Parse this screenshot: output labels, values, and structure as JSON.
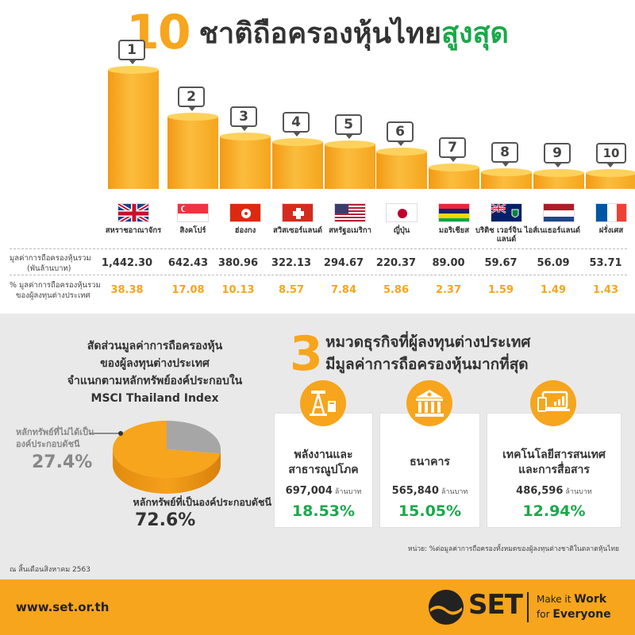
{
  "title": {
    "number": "10",
    "text": "ชาติถือครองหุ้นไทย",
    "highlight": "สูงสุด"
  },
  "chart_data": {
    "type": "bar",
    "title": "10 ชาติถือครองหุ้นไทยสูงสุด",
    "categories": [
      "สหราชอาณาจักร",
      "สิงคโปร์",
      "ฮ่องกง",
      "สวิสเซอร์แลนด์",
      "สหรัฐอเมริกา",
      "ญี่ปุ่น",
      "มอริเชียส",
      "บริติช เวอร์จิน ไอส์แลนด์",
      "เนเธอร์แลนด์",
      "ฝรั่งเศส"
    ],
    "ranks": [
      "1",
      "2",
      "3",
      "4",
      "5",
      "6",
      "7",
      "8",
      "9",
      "10"
    ],
    "values": [
      1442.3,
      642.43,
      380.96,
      322.13,
      294.67,
      220.37,
      89.0,
      59.67,
      56.09,
      53.71
    ],
    "series": [
      {
        "name": "มูลค่าการถือครองหุ้นรวม (พันล้านบาท)",
        "values": [
          1442.3,
          642.43,
          380.96,
          322.13,
          294.67,
          220.37,
          89.0,
          59.67,
          56.09,
          53.71
        ]
      },
      {
        "name": "% มูลค่าการถือครองหุ้นรวมของผู้ลงทุนต่างประเทศ",
        "values": [
          38.38,
          17.08,
          10.13,
          8.57,
          7.84,
          5.86,
          2.37,
          1.59,
          1.49,
          1.43
        ]
      }
    ]
  },
  "flags": [
    "flag-uk-icon",
    "flag-singapore-icon",
    "flag-hongkong-icon",
    "flag-switzerland-icon",
    "flag-usa-icon",
    "flag-japan-icon",
    "flag-mauritius-icon",
    "flag-bvi-icon",
    "flag-netherlands-icon",
    "flag-france-icon"
  ],
  "rows": {
    "value": {
      "label_line1": "มูลค่าการถือครองหุ้นรวม",
      "label_line2": "(พันล้านบาท)",
      "cells": [
        "1,442.30",
        "642.43",
        "380.96",
        "322.13",
        "294.67",
        "220.37",
        "89.00",
        "59.67",
        "56.09",
        "53.71"
      ]
    },
    "pct": {
      "label_line1": "% มูลค่าการถือครองหุ้นรวม",
      "label_line2": "ของผู้ลงทุนต่างประเทศ",
      "cells": [
        "38.38",
        "17.08",
        "10.13",
        "8.57",
        "7.84",
        "5.86",
        "2.37",
        "1.59",
        "1.49",
        "1.43"
      ]
    }
  },
  "pie": {
    "title_lines": [
      "สัดส่วนมูลค่าการถือครองหุ้น",
      "ของผู้ลงทุนต่างประเทศ",
      "จำแนกตามหลักทรัพย์องค์ประกอบใน",
      "MSCI Thailand Index"
    ],
    "slices": [
      {
        "label_line1": "หลักทรัพย์ที่ไม่ได้เป็น",
        "label_line2": "องค์ประกอบดัชนี",
        "pct_text": "27.4%",
        "value": 27.4,
        "color": "#a6a6a6"
      },
      {
        "label": "หลักทรัพย์ที่เป็นองค์ประกอบดัชนี",
        "pct_text": "72.6%",
        "value": 72.6,
        "color": "#f7a51c"
      }
    ]
  },
  "sectors": {
    "number": "3",
    "title_line1": "หมวดธุรกิจที่ผู้ลงทุนต่างประเทศ",
    "title_line2": "มีมูลค่าการถือครองหุ้นมากที่สุด",
    "unit_note": "หน่วย: %ต่อมูลค่าการถือครองทั้งหมดของผู้ลงทุนต่างชาติในตลาดหุ้นไทย",
    "cards": [
      {
        "icon": "oil-pump-icon",
        "name_line1": "พลังงานและ",
        "name_line2": "สาธารณูปโภค",
        "amount": "697,004",
        "unit": "ล้านบาท",
        "pct": "18.53%"
      },
      {
        "icon": "bank-icon",
        "name_line1": "ธนาคาร",
        "name_line2": "",
        "amount": "565,840",
        "unit": "ล้านบาท",
        "pct": "15.05%"
      },
      {
        "icon": "devices-icon",
        "name_line1": "เทคโนโลยีสารสนเทศ",
        "name_line2": "และการสื่อสาร",
        "amount": "486,596",
        "unit": "ล้านบาท",
        "pct": "12.94%"
      }
    ]
  },
  "date_note": "ณ สิ้นเดือนสิงหาคม 2563",
  "footer": {
    "url": "www.set.or.th",
    "logo_text": "SET",
    "tagline_line1_a": "Make it ",
    "tagline_line1_b": "Work",
    "tagline_line2_a": "for ",
    "tagline_line2_b": "Everyone"
  },
  "colors": {
    "accent": "#f7a51c",
    "green": "#1aa84b",
    "grey": "#a6a6a6",
    "panel": "#e9e9ea"
  }
}
